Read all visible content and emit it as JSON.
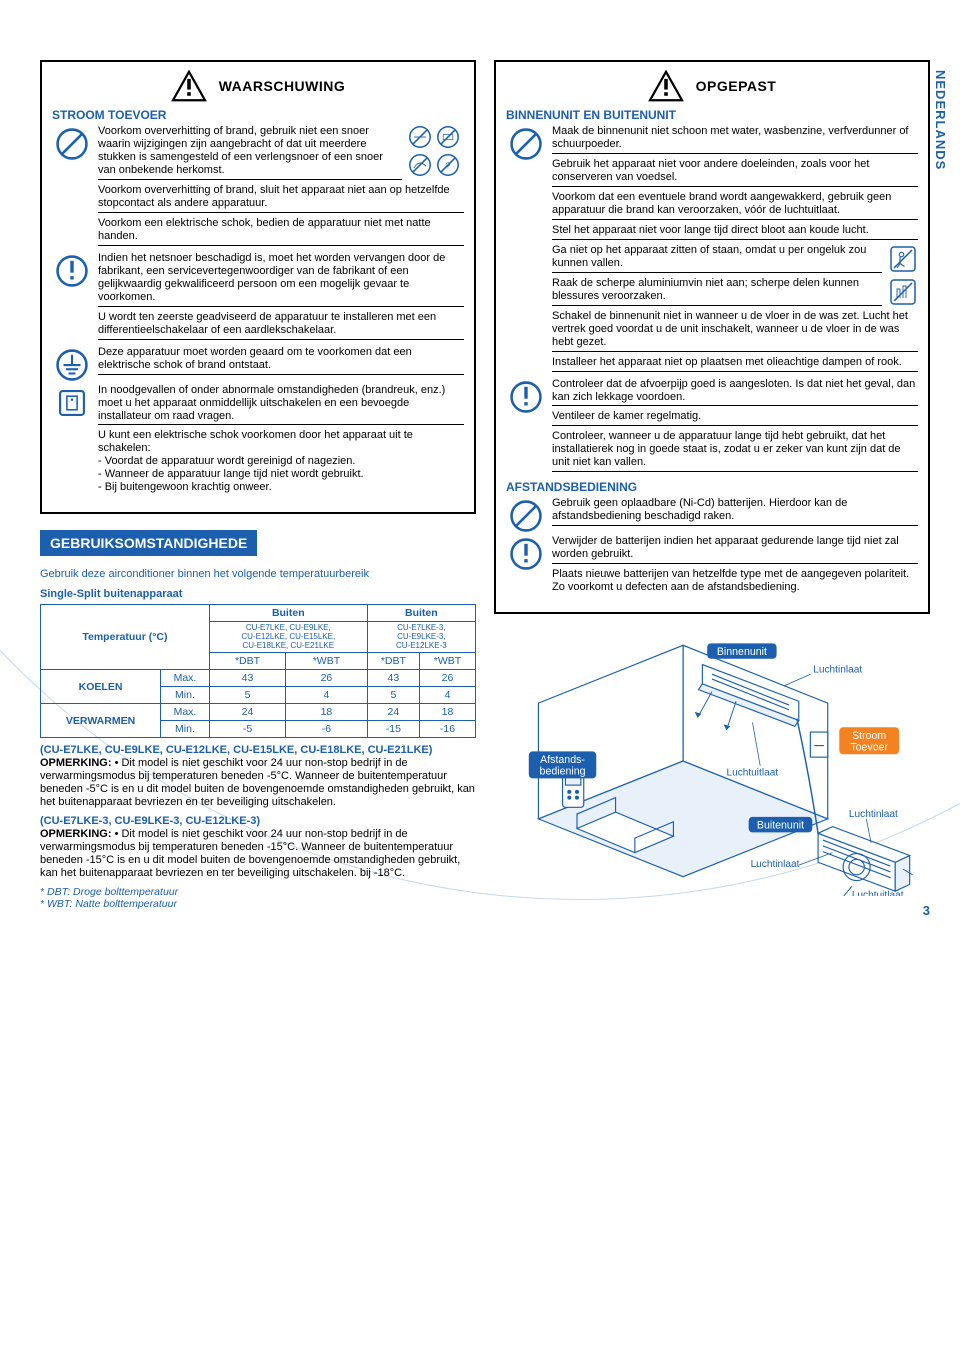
{
  "lang_tab": "NEDERLANDS",
  "page_number": "3",
  "left": {
    "warning_title": "WAARSCHUWING",
    "section1_title": "STROOM TOEVOER",
    "s1_p1": "Voorkom oververhitting of brand, gebruik niet een snoer waarin wijzigingen zijn aangebracht of dat uit meerdere stukken is samengesteld of een verlengsnoer of een snoer van onbekende herkomst.",
    "s1_p2": "Voorkom oververhitting of brand, sluit het apparaat niet aan op hetzelfde stopcontact als andere apparatuur.",
    "s1_p3": "Voorkom een elektrische schok, bedien de apparatuur niet met natte handen.",
    "s1_p4": "Indien het netsnoer beschadigd is, moet het worden vervangen door de fabrikant, een servicevertegenwoordiger van de fabrikant of een gelijkwaardig gekwalificeerd persoon om een mogelijk gevaar te voorkomen.",
    "s1_p5": "U wordt ten zeerste geadviseerd de apparatuur te installeren met een differentieelschakelaar of een aardlekschakelaar.",
    "s1_p6": "Deze apparatuur moet worden geaard om te voorkomen dat een elektrische schok of brand ontstaat.",
    "s1_p7": "In noodgevallen of onder abnormale omstandigheden (brandreuk, enz.) moet u het apparaat onmiddellijk uitschakelen en een bevoegde installateur om raad vragen.",
    "s1_p8a": "U kunt een elektrische schok voorkomen door het apparaat uit te schakelen:",
    "s1_p8b": "- Voordat de apparatuur wordt gereinigd of nagezien.",
    "s1_p8c": "- Wanneer de apparatuur lange tijd niet wordt gebruikt.",
    "s1_p8d": "- Bij buitengewoon krachtig onweer."
  },
  "usage": {
    "heading": "GEBRUIKSOMSTANDIGHEDE",
    "intro": "Gebruik deze airconditioner binnen het volgende temperatuurbereik",
    "sub": "Single-Split buitenapparaat",
    "temp_label": "Temperatuur (°C)",
    "buiten": "Buiten",
    "models_a": "CU-E7LKE, CU-E9LKE,\nCU-E12LKE, CU-E15LKE,\nCU-E18LKE, CU-E21LKE",
    "models_b": "CU-E7LKE-3,\nCU-E9LKE-3,\nCU-E12LKE-3",
    "dbt": "*DBT",
    "wbt": "*WBT",
    "koelen": "KOELEN",
    "verwarmen": "VERWARMEN",
    "max": "Max.",
    "min": "Min.",
    "row1": [
      "43",
      "26",
      "43",
      "26"
    ],
    "row2": [
      "5",
      "4",
      "5",
      "4"
    ],
    "row3": [
      "24",
      "18",
      "24",
      "18"
    ],
    "row4": [
      "-5",
      "-6",
      "-15",
      "-16"
    ],
    "note1_models": "(CU-E7LKE, CU-E9LKE, CU-E12LKE, CU-E15LKE, CU-E18LKE, CU-E21LKE)",
    "note1": "OPMERKING: • Dit model is niet geschikt voor 24 uur non-stop bedrijf in de verwarmingsmodus bij temperaturen beneden -5°C. Wanneer de buitentemperatuur beneden -5°C is en u dit model buiten de bovengenoemde omstandigheden gebruikt, kan het buitenapparaat bevriezen en ter beveiliging uitschakelen.",
    "note2_models": "(CU-E7LKE-3, CU-E9LKE-3, CU-E12LKE-3)",
    "note2": "OPMERKING: • Dit model is niet geschikt voor 24 uur non-stop bedrijf in de verwarmingsmodus bij temperaturen beneden -15°C. Wanneer de buitentemperatuur beneden -15°C is en u dit model buiten de bovengenoemde omstandigheden gebruikt, kan het buitenapparaat bevriezen en ter beveiliging uitschakelen. bij -18°C.",
    "fn1": "* DBT: Droge bolttemperatuur",
    "fn2": "* WBT: Natte bolttemperatuur"
  },
  "right": {
    "caution_title": "OPGEPAST",
    "section1_title": "BINNENUNIT EN BUITENUNIT",
    "r1": "Maak de binnenunit niet schoon met water, wasbenzine, verfverdunner of schuurpoeder.",
    "r2": "Gebruik het apparaat niet voor andere doeleinden, zoals voor het conserveren van voedsel.",
    "r3": "Voorkom dat een eventuele brand wordt aangewakkerd, gebruik geen apparatuur die brand kan veroorzaken, vóór de luchtuitlaat.",
    "r4": "Stel het apparaat niet voor lange tijd direct bloot aan koude lucht.",
    "r5": "Ga niet op het apparaat zitten of staan, omdat u per ongeluk zou kunnen vallen.",
    "r6": "Raak de scherpe aluminiumvin niet aan; scherpe delen kunnen blessures veroorzaken.",
    "r7": "Schakel de binnenunit niet in wanneer u de vloer in de was zet. Lucht het vertrek goed voordat u de unit inschakelt, wanneer u de vloer in de was hebt gezet.",
    "r8": "Installeer het apparaat niet op plaatsen met olieachtige dampen of rook.",
    "r9": "Controleer dat de afvoerpijp goed is aangesloten. Is dat niet het geval, dan kan zich lekkage voordoen.",
    "r10": "Ventileer de kamer regelmatig.",
    "r11": "Controleer, wanneer u de apparatuur lange tijd hebt gebruikt, dat het installatierek nog in goede staat is, zodat u er zeker van kunt zijn dat de unit niet kan vallen.",
    "section2_title": "AFSTANDSBEDIENING",
    "r12": "Gebruik geen oplaadbare (Ni-Cd) batterijen. Hierdoor kan de afstandsbediening beschadigd raken.",
    "r13": "Verwijder de batterijen indien het apparaat gedurende lange tijd niet zal worden gebruikt.",
    "r14": "Plaats nieuwe batterijen van hetzelfde type met de aangegeven polariteit. Zo voorkomt u defecten aan de afstandsbediening."
  },
  "diagram": {
    "afstands": "Afstands-\nbediening",
    "binnenunit": "Binnenunit",
    "buitenunit": "Buitenunit",
    "luchtinlaat": "Luchtinlaat",
    "luchtuitlaat": "Luchtuitlaat",
    "stroom": "Stroom\nToevoer",
    "color_line": "#1b5fae",
    "color_fill": "#e8f0fa"
  }
}
